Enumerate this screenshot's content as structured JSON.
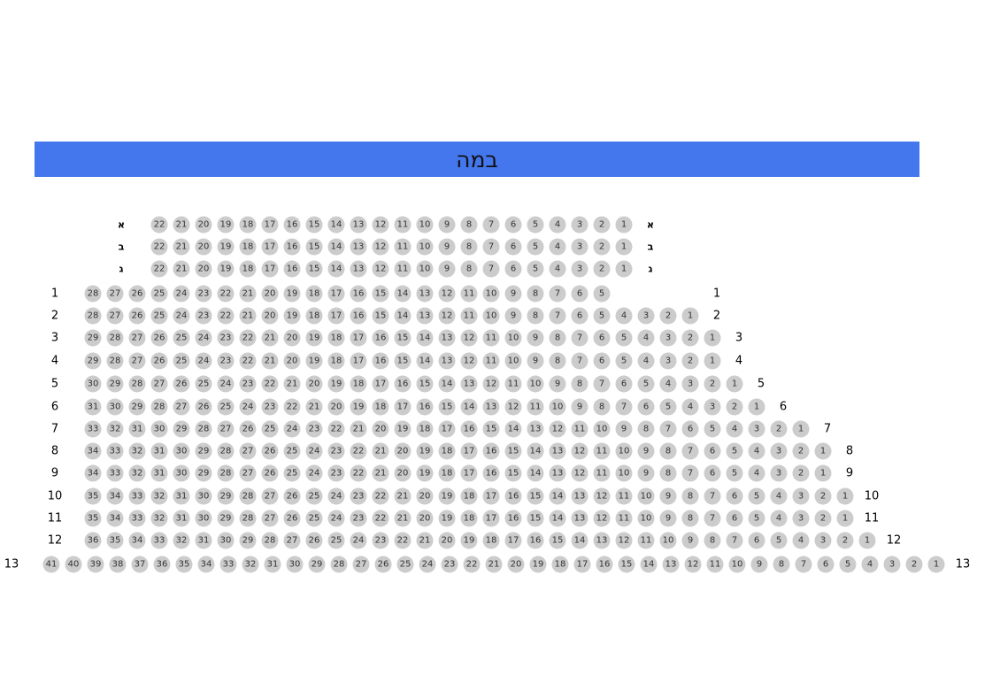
{
  "stage": {
    "label": "במה",
    "color": "#4477ee"
  },
  "seat_color": "#cccccc",
  "rows": [
    {
      "label": "א",
      "from": 22,
      "to": 1
    },
    {
      "label": "ב",
      "from": 22,
      "to": 1
    },
    {
      "label": "ג",
      "from": 22,
      "to": 1
    },
    {
      "label": "1",
      "from": 28,
      "to": 5
    },
    {
      "label": "2",
      "from": 28,
      "to": 1
    },
    {
      "label": "3",
      "from": 29,
      "to": 1
    },
    {
      "label": "4",
      "from": 29,
      "to": 1
    },
    {
      "label": "5",
      "from": 30,
      "to": 1
    },
    {
      "label": "6",
      "from": 31,
      "to": 1
    },
    {
      "label": "7",
      "from": 33,
      "to": 1
    },
    {
      "label": "8",
      "from": 34,
      "to": 1
    },
    {
      "label": "9",
      "from": 34,
      "to": 1
    },
    {
      "label": "10",
      "from": 35,
      "to": 1
    },
    {
      "label": "11",
      "from": 35,
      "to": 1
    },
    {
      "label": "12",
      "from": 36,
      "to": 1
    },
    {
      "label": "13",
      "from": 41,
      "to": 1
    }
  ]
}
